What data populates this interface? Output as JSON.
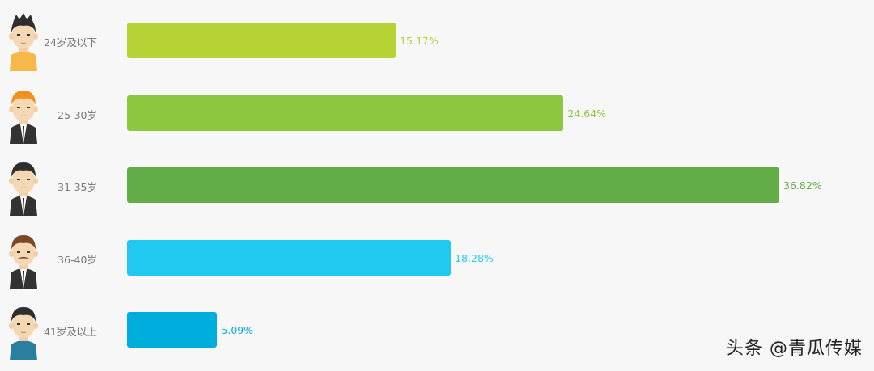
{
  "chart_data": {
    "type": "bar",
    "orientation": "horizontal",
    "categories": [
      "24岁及以下",
      "25-30岁",
      "31-35岁",
      "36-40岁",
      "41岁及以上"
    ],
    "values": [
      15.17,
      24.64,
      36.82,
      18.28,
      5.09
    ],
    "value_labels": [
      "15.17%",
      "24.64%",
      "36.82%",
      "18.28%",
      "5.09%"
    ],
    "unit": "%",
    "xlim": [
      0,
      36.82
    ],
    "grid": false,
    "colors": [
      "#b5d334",
      "#8dc63f",
      "#62ad47",
      "#21c8f0",
      "#00aede"
    ],
    "avatars": [
      {
        "icon": "boy-spiky-hair-avatar",
        "hair": "#2e2e2e",
        "shirt": "#f7b84a"
      },
      {
        "icon": "man-orange-hair-suit-avatar",
        "hair": "#f0901e",
        "shirt": "#333333"
      },
      {
        "icon": "man-black-hair-suit-avatar",
        "hair": "#2e2e2e",
        "shirt": "#333333"
      },
      {
        "icon": "man-mustache-suit-avatar",
        "hair": "#7a4a26",
        "shirt": "#333333"
      },
      {
        "icon": "man-blue-shirt-avatar",
        "hair": "#2e2e2e",
        "shirt": "#2a7fa0"
      }
    ]
  },
  "watermark": "头条 @青瓜传媒"
}
